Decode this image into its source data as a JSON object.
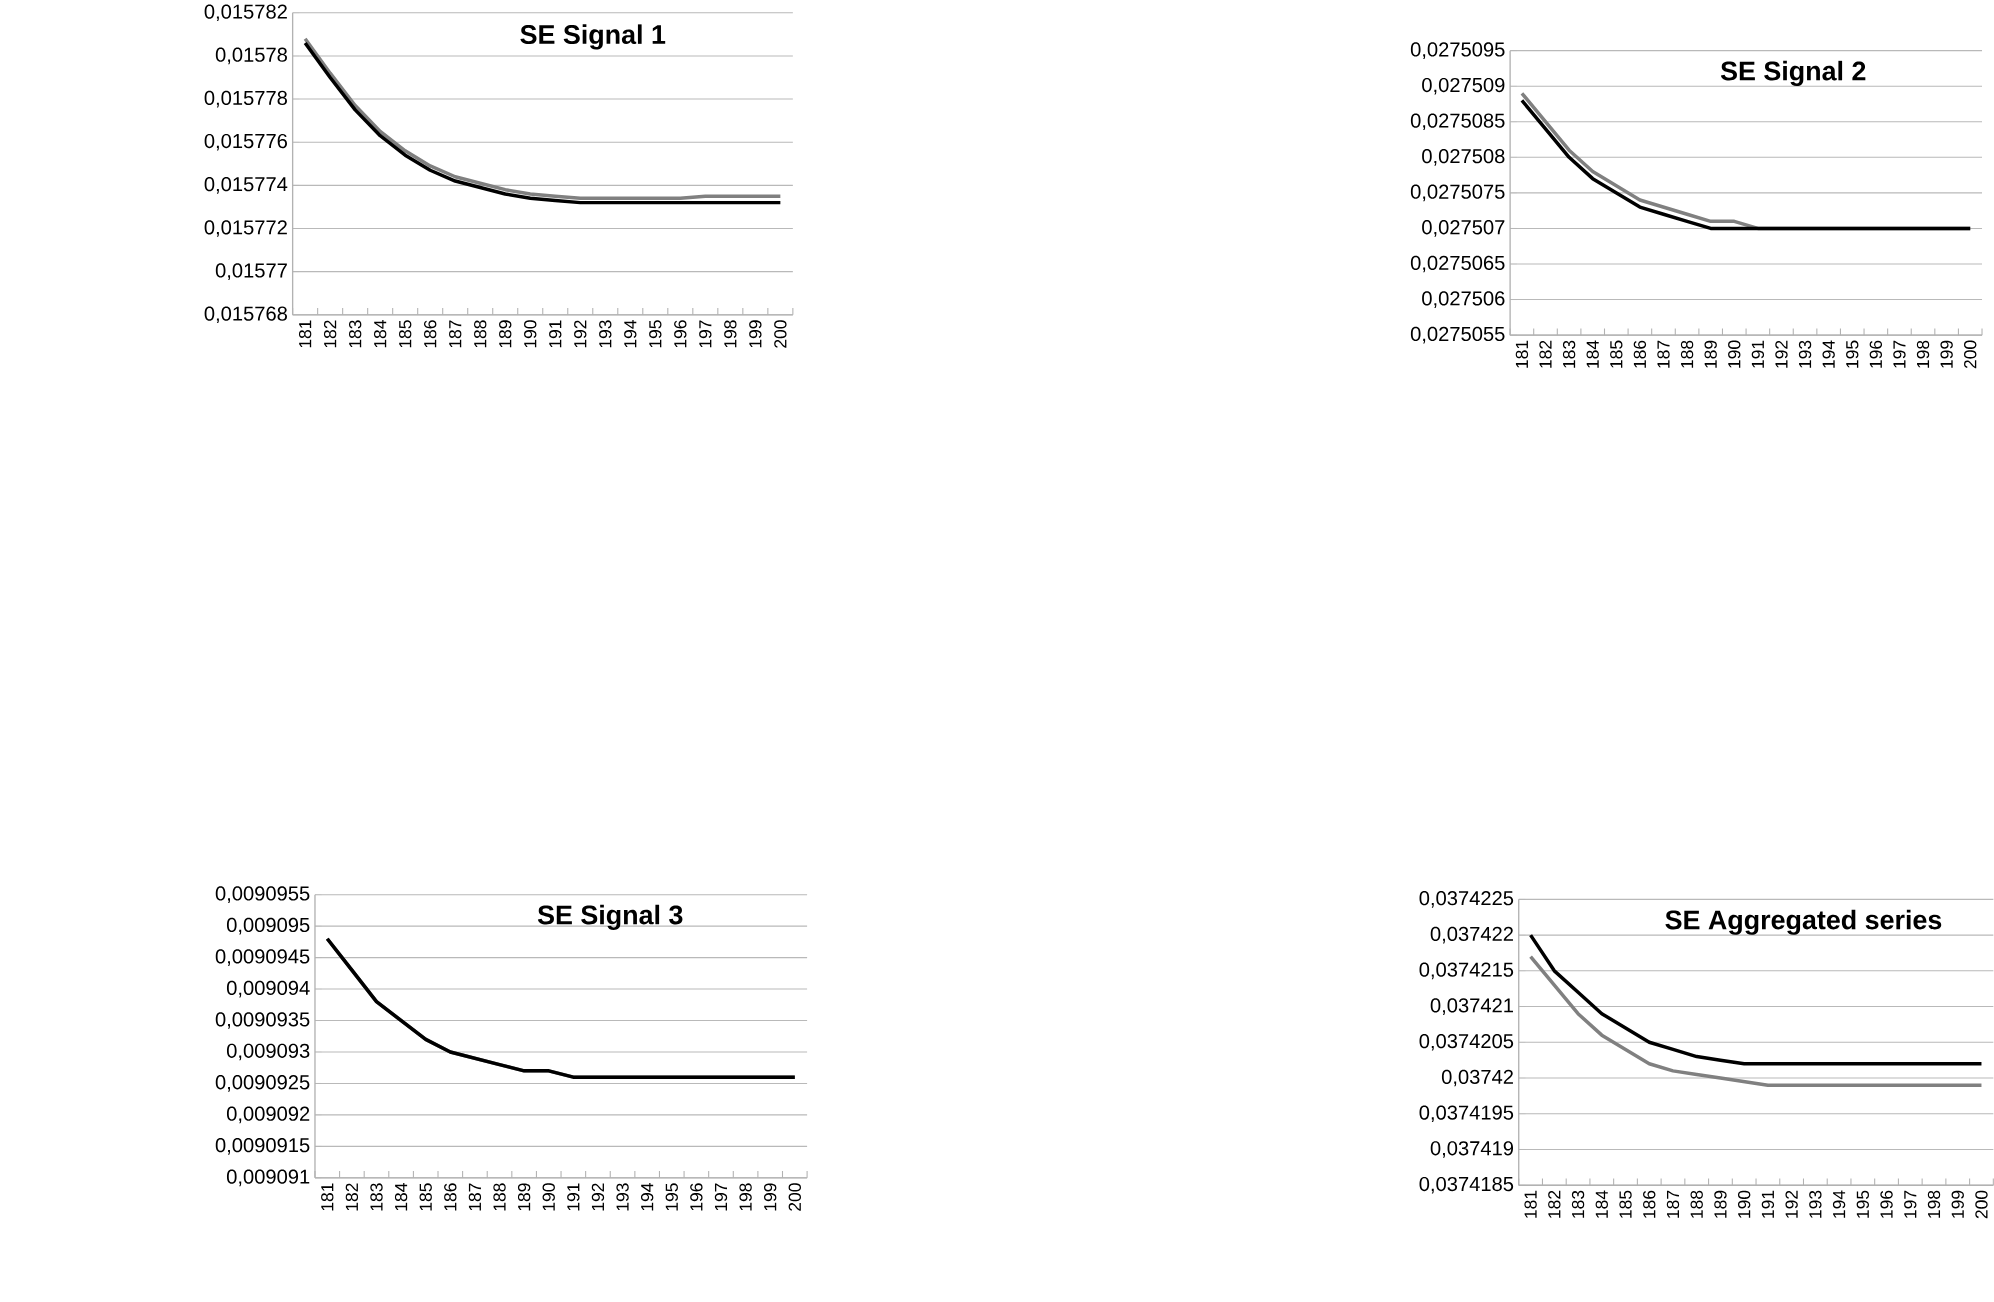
{
  "chart_data": [
    {
      "type": "line",
      "title": "SE Signal 1",
      "categories": [
        "181",
        "182",
        "183",
        "184",
        "185",
        "186",
        "187",
        "188",
        "189",
        "190",
        "191",
        "192",
        "193",
        "194",
        "195",
        "196",
        "197",
        "198",
        "199",
        "200"
      ],
      "grid": "y",
      "series": [
        {
          "color": "#808080",
          "values": [
            0.0157808,
            0.0157792,
            0.0157777,
            0.0157765,
            0.0157756,
            0.0157749,
            0.0157744,
            0.0157741,
            0.0157738,
            0.0157736,
            0.0157735,
            0.0157734,
            0.0157734,
            0.0157734,
            0.0157734,
            0.0157734,
            0.0157735,
            0.0157735,
            0.0157735,
            0.0157735
          ]
        },
        {
          "color": "#000000",
          "values": [
            0.0157806,
            0.015779,
            0.0157775,
            0.0157763,
            0.0157754,
            0.0157747,
            0.0157742,
            0.0157739,
            0.0157736,
            0.0157734,
            0.0157733,
            0.0157732,
            0.0157732,
            0.0157732,
            0.0157732,
            0.0157732,
            0.0157732,
            0.0157732,
            0.0157732,
            0.0157732
          ]
        }
      ],
      "ylim": [
        0.015768,
        0.015782
      ],
      "yticks": [
        {
          "value": 0.015768,
          "label": "0,015768"
        },
        {
          "value": 0.01577,
          "label": "0,01577"
        },
        {
          "value": 0.015772,
          "label": "0,015772"
        },
        {
          "value": 0.015774,
          "label": "0,015774"
        },
        {
          "value": 0.015776,
          "label": "0,015776"
        },
        {
          "value": 0.015778,
          "label": "0,015778"
        },
        {
          "value": 0.01578,
          "label": "0,01578"
        },
        {
          "value": 0.015782,
          "label": "0,015782"
        }
      ]
    },
    {
      "type": "line",
      "title": "SE Signal 2",
      "categories": [
        "181",
        "182",
        "183",
        "184",
        "185",
        "186",
        "187",
        "188",
        "189",
        "190",
        "191",
        "192",
        "193",
        "194",
        "195",
        "196",
        "197",
        "198",
        "199",
        "200"
      ],
      "grid": "y",
      "series": [
        {
          "color": "#808080",
          "values": [
            0.0275089,
            0.0275085,
            0.0275081,
            0.0275078,
            0.0275076,
            0.0275074,
            0.0275073,
            0.0275072,
            0.0275071,
            0.0275071,
            0.027507,
            0.027507,
            0.027507,
            0.027507,
            0.027507,
            0.027507,
            0.027507,
            0.027507,
            0.027507,
            0.027507
          ]
        },
        {
          "color": "#000000",
          "values": [
            0.0275088,
            0.0275084,
            0.027508,
            0.0275077,
            0.0275075,
            0.0275073,
            0.0275072,
            0.0275071,
            0.027507,
            0.027507,
            0.027507,
            0.027507,
            0.027507,
            0.027507,
            0.027507,
            0.027507,
            0.027507,
            0.027507,
            0.027507,
            0.027507
          ]
        }
      ],
      "ylim": [
        0.0275055,
        0.0275095
      ],
      "yticks": [
        {
          "value": 0.0275055,
          "label": "0,0275055"
        },
        {
          "value": 0.027506,
          "label": "0,027506"
        },
        {
          "value": 0.0275065,
          "label": "0,0275065"
        },
        {
          "value": 0.027507,
          "label": "0,027507"
        },
        {
          "value": 0.0275075,
          "label": "0,0275075"
        },
        {
          "value": 0.027508,
          "label": "0,027508"
        },
        {
          "value": 0.0275085,
          "label": "0,0275085"
        },
        {
          "value": 0.027509,
          "label": "0,027509"
        },
        {
          "value": 0.0275095,
          "label": "0,0275095"
        }
      ]
    },
    {
      "type": "line",
      "title": "SE Signal 3",
      "categories": [
        "181",
        "182",
        "183",
        "184",
        "185",
        "186",
        "187",
        "188",
        "189",
        "190",
        "191",
        "192",
        "193",
        "194",
        "195",
        "196",
        "197",
        "198",
        "199",
        "200"
      ],
      "grid": "y",
      "series": [
        {
          "color": "#808080",
          "values": [
            0.0090948,
            0.0090943,
            0.0090938,
            0.0090935,
            0.0090932,
            0.009093,
            0.0090929,
            0.0090928,
            0.0090927,
            0.0090927,
            0.0090926,
            0.0090926,
            0.0090926,
            0.0090926,
            0.0090926,
            0.0090926,
            0.0090926,
            0.0090926,
            0.0090926,
            0.0090926
          ]
        },
        {
          "color": "#000000",
          "values": [
            0.0090948,
            0.0090943,
            0.0090938,
            0.0090935,
            0.0090932,
            0.009093,
            0.0090929,
            0.0090928,
            0.0090927,
            0.0090927,
            0.0090926,
            0.0090926,
            0.0090926,
            0.0090926,
            0.0090926,
            0.0090926,
            0.0090926,
            0.0090926,
            0.0090926,
            0.0090926
          ]
        }
      ],
      "ylim": [
        0.009091,
        0.0090955
      ],
      "yticks": [
        {
          "value": 0.009091,
          "label": "0,009091"
        },
        {
          "value": 0.0090915,
          "label": "0,0090915"
        },
        {
          "value": 0.009092,
          "label": "0,009092"
        },
        {
          "value": 0.0090925,
          "label": "0,0090925"
        },
        {
          "value": 0.009093,
          "label": "0,009093"
        },
        {
          "value": 0.0090935,
          "label": "0,0090935"
        },
        {
          "value": 0.009094,
          "label": "0,009094"
        },
        {
          "value": 0.0090945,
          "label": "0,0090945"
        },
        {
          "value": 0.009095,
          "label": "0,009095"
        },
        {
          "value": 0.0090955,
          "label": "0,0090955"
        }
      ]
    },
    {
      "type": "line",
      "title": "SE Aggregated series",
      "categories": [
        "181",
        "182",
        "183",
        "184",
        "185",
        "186",
        "187",
        "188",
        "189",
        "190",
        "191",
        "192",
        "193",
        "194",
        "195",
        "196",
        "197",
        "198",
        "199",
        "200"
      ],
      "grid": "y",
      "series": [
        {
          "color": "#808080",
          "values": [
            0.0374217,
            0.0374213,
            0.0374209,
            0.0374206,
            0.0374204,
            0.0374202,
            0.0374201,
            0.03742005,
            0.03742,
            0.03741995,
            0.0374199,
            0.0374199,
            0.0374199,
            0.0374199,
            0.0374199,
            0.0374199,
            0.0374199,
            0.0374199,
            0.0374199,
            0.0374199
          ]
        },
        {
          "color": "#000000",
          "values": [
            0.037422,
            0.0374215,
            0.0374212,
            0.0374209,
            0.0374207,
            0.0374205,
            0.0374204,
            0.0374203,
            0.03742025,
            0.0374202,
            0.0374202,
            0.0374202,
            0.0374202,
            0.0374202,
            0.0374202,
            0.0374202,
            0.0374202,
            0.0374202,
            0.0374202,
            0.0374202
          ]
        }
      ],
      "ylim": [
        0.0374185,
        0.0374225
      ],
      "yticks": [
        {
          "value": 0.0374185,
          "label": "0,0374185"
        },
        {
          "value": 0.037419,
          "label": "0,037419"
        },
        {
          "value": 0.0374195,
          "label": "0,0374195"
        },
        {
          "value": 0.03742,
          "label": "0,03742"
        },
        {
          "value": 0.0374205,
          "label": "0,0374205"
        },
        {
          "value": 0.037421,
          "label": "0,037421"
        },
        {
          "value": 0.0374215,
          "label": "0,0374215"
        },
        {
          "value": 0.037422,
          "label": "0,037422"
        },
        {
          "value": 0.0374225,
          "label": "0,0374225"
        }
      ]
    }
  ]
}
